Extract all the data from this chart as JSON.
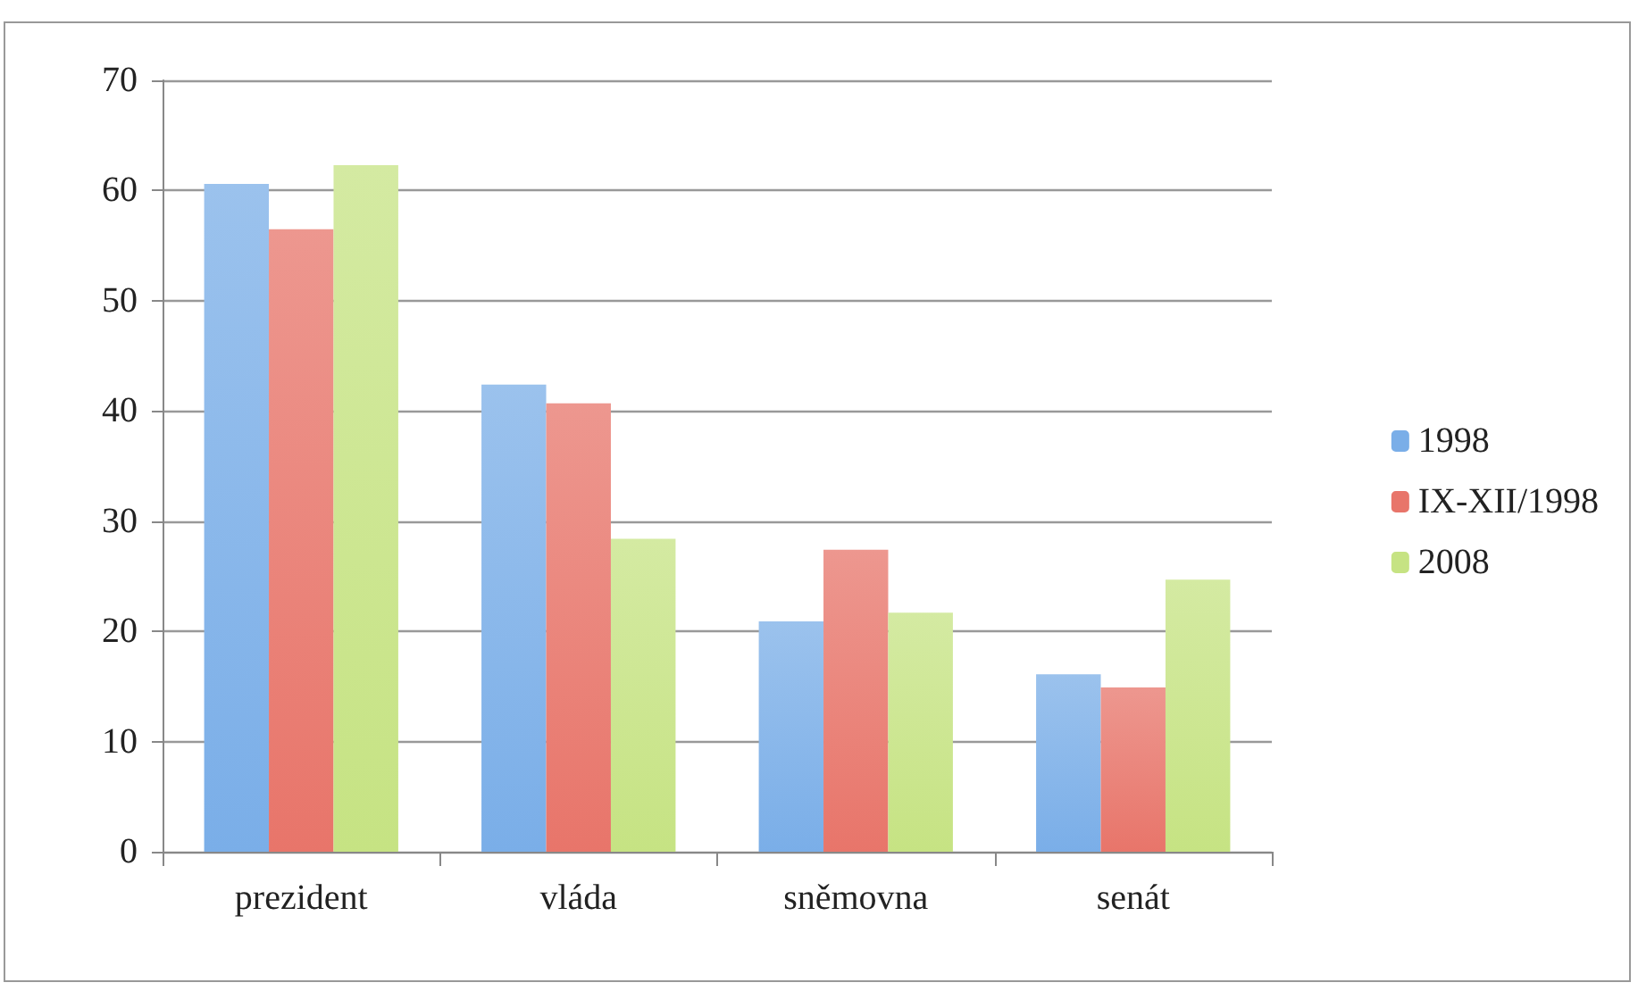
{
  "chart_data": {
    "type": "bar",
    "categories": [
      "prezident",
      "vláda",
      "sněmovna",
      "senát"
    ],
    "series": [
      {
        "name": "1998",
        "color": "#7aaee8",
        "values": [
          60.6,
          42.4,
          20.9,
          16.1
        ]
      },
      {
        "name": "IX-XII/1998",
        "color": "#e8756a",
        "values": [
          56.5,
          40.7,
          27.4,
          14.9
        ]
      },
      {
        "name": "2008",
        "color": "#c6e383",
        "values": [
          62.3,
          28.4,
          21.7,
          24.7
        ]
      }
    ],
    "ylim": [
      0,
      70
    ],
    "yticks": [
      0,
      10,
      20,
      30,
      40,
      50,
      60,
      70
    ],
    "grid": "y",
    "legend": "right"
  }
}
